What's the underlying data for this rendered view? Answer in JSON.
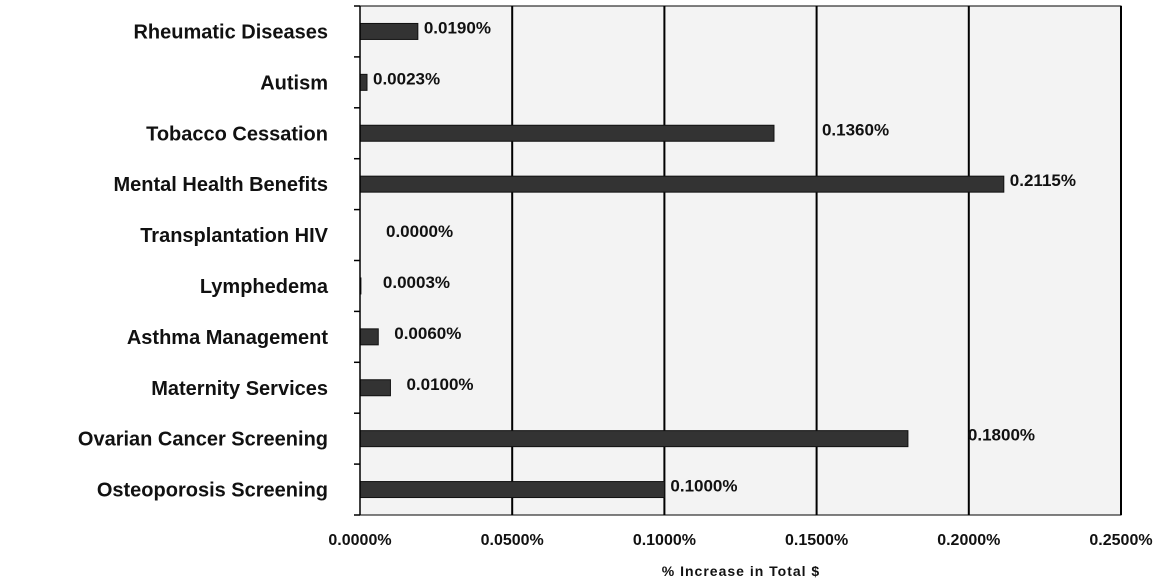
{
  "chart_data": {
    "type": "bar",
    "orientation": "horizontal",
    "categories": [
      "Rheumatic Diseases",
      "Autism",
      "Tobacco Cessation",
      "Mental Health Benefits",
      "Transplantation HIV",
      "Lymphedema",
      "Asthma Management",
      "Maternity Services",
      "Ovarian Cancer Screening",
      "Osteoporosis Screening"
    ],
    "values": [
      0.019,
      0.0023,
      0.136,
      0.2115,
      0.0,
      0.0003,
      0.006,
      0.01,
      0.18,
      0.1
    ],
    "data_labels": [
      "0.0190%",
      "0.0023%",
      "0.1360%",
      "0.2115%",
      "0.0000%",
      "0.0003%",
      "0.0060%",
      "0.0100%",
      "0.1800%",
      "0.1000%"
    ],
    "xlabel": "% Increase in Total $",
    "ylabel": "",
    "xlim": [
      0,
      0.25
    ],
    "x_ticks": [
      0,
      0.05,
      0.1,
      0.15,
      0.2,
      0.25
    ],
    "x_tick_labels": [
      "0.0000%",
      "0.0500%",
      "0.1000%",
      "0.1500%",
      "0.2000%",
      "0.2500%"
    ],
    "grid": "vertical",
    "legend": "none",
    "colors": {
      "bar": "#333333",
      "plot_background": "#f3f3f3",
      "grid": "#000000"
    }
  }
}
